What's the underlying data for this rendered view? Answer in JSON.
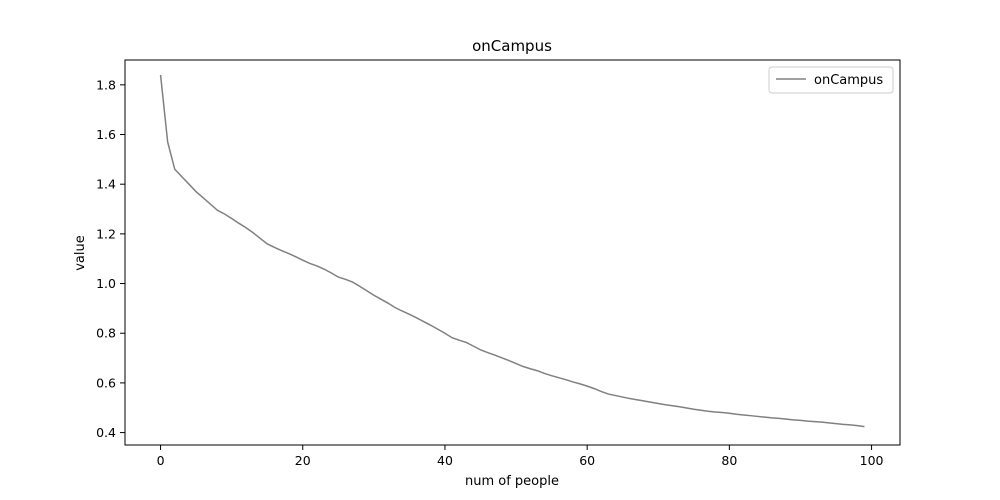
{
  "chart_data": {
    "type": "line",
    "title": "onCampus",
    "xlabel": "num of people",
    "ylabel": "value",
    "xlim": [
      -5,
      104
    ],
    "ylim": [
      0.35,
      1.9
    ],
    "xticks": [
      0,
      20,
      40,
      60,
      80,
      100
    ],
    "yticks": [
      0.4,
      0.6,
      0.8,
      1.0,
      1.2,
      1.4,
      1.6,
      1.8
    ],
    "ytick_labels": [
      "0.4",
      "0.6",
      "0.8",
      "1.0",
      "1.2",
      "1.4",
      "1.6",
      "1.8"
    ],
    "grid": false,
    "legend": {
      "position": "top-right"
    },
    "series": [
      {
        "name": "onCampus",
        "color": "#808080",
        "x": [
          0,
          1,
          2,
          3,
          4,
          5,
          6,
          7,
          8,
          9,
          10,
          11,
          12,
          13,
          14,
          15,
          16,
          17,
          18,
          19,
          20,
          21,
          22,
          23,
          24,
          25,
          26,
          27,
          28,
          29,
          30,
          31,
          32,
          33,
          34,
          35,
          36,
          37,
          38,
          39,
          40,
          41,
          42,
          43,
          44,
          45,
          46,
          47,
          48,
          49,
          50,
          51,
          52,
          53,
          54,
          55,
          56,
          57,
          58,
          59,
          60,
          61,
          62,
          63,
          64,
          65,
          66,
          67,
          68,
          69,
          70,
          71,
          72,
          73,
          74,
          75,
          76,
          77,
          78,
          79,
          80,
          81,
          82,
          83,
          84,
          85,
          86,
          87,
          88,
          89,
          90,
          91,
          92,
          93,
          94,
          95,
          96,
          97,
          98,
          99
        ],
        "y": [
          1.84,
          1.57,
          1.46,
          1.43,
          1.4,
          1.37,
          1.345,
          1.32,
          1.295,
          1.28,
          1.262,
          1.243,
          1.225,
          1.205,
          1.182,
          1.16,
          1.146,
          1.133,
          1.121,
          1.108,
          1.094,
          1.081,
          1.071,
          1.058,
          1.043,
          1.026,
          1.017,
          1.006,
          0.989,
          0.971,
          0.953,
          0.937,
          0.921,
          0.903,
          0.889,
          0.876,
          0.862,
          0.847,
          0.832,
          0.816,
          0.8,
          0.782,
          0.772,
          0.763,
          0.748,
          0.733,
          0.722,
          0.712,
          0.701,
          0.69,
          0.678,
          0.666,
          0.657,
          0.649,
          0.638,
          0.629,
          0.621,
          0.613,
          0.604,
          0.596,
          0.587,
          0.577,
          0.565,
          0.555,
          0.549,
          0.543,
          0.537,
          0.532,
          0.527,
          0.522,
          0.517,
          0.512,
          0.508,
          0.504,
          0.499,
          0.494,
          0.49,
          0.486,
          0.483,
          0.481,
          0.478,
          0.474,
          0.471,
          0.468,
          0.465,
          0.462,
          0.459,
          0.457,
          0.454,
          0.451,
          0.449,
          0.446,
          0.444,
          0.442,
          0.439,
          0.436,
          0.433,
          0.431,
          0.428,
          0.424
        ]
      }
    ]
  }
}
